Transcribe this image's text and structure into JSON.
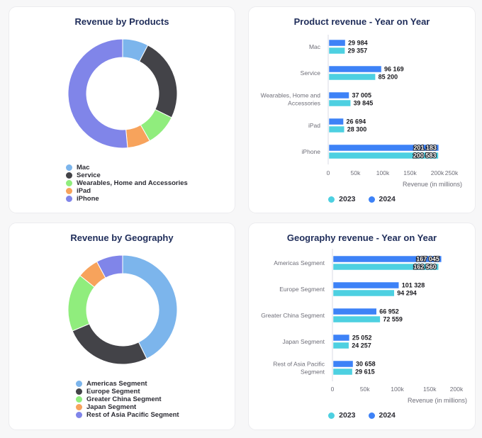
{
  "colors": {
    "c2023": "#4dd0e1",
    "c2024": "#3d82f7",
    "slices": [
      "#7cb5ec",
      "#434348",
      "#90ed7d",
      "#f7a35c",
      "#8085e9"
    ]
  },
  "chart_data": [
    {
      "id": "products-donut",
      "type": "pie",
      "title": "Revenue by Products",
      "labels": [
        "Mac",
        "Service",
        "Wearables, Home and Accessories",
        "iPad",
        "iPhone"
      ],
      "values": [
        29984,
        96169,
        37005,
        26694,
        201183
      ],
      "legend_position": "bottom"
    },
    {
      "id": "product-yoy",
      "type": "bar",
      "orientation": "horizontal",
      "title": "Product revenue - Year on Year",
      "categories": [
        "Mac",
        "Service",
        "Wearables, Home and Accessories",
        "iPad",
        "iPhone"
      ],
      "category_lines": [
        [
          "Mac"
        ],
        [
          "Service"
        ],
        [
          "Wearables, Home and",
          "Accessories"
        ],
        [
          "iPad"
        ],
        [
          "iPhone"
        ]
      ],
      "series": [
        {
          "name": "2024",
          "values": [
            29984,
            96169,
            37005,
            26694,
            201183
          ]
        },
        {
          "name": "2023",
          "values": [
            29357,
            85200,
            39845,
            28300,
            200583
          ]
        }
      ],
      "value_labels_2024": [
        "29 984",
        "96 169",
        "37 005",
        "26 694",
        "201 183"
      ],
      "value_labels_2023": [
        "29 357",
        "85 200",
        "39 845",
        "28 300",
        "200 583"
      ],
      "xticks": [
        "0",
        "50k",
        "100k",
        "150k",
        "200k",
        "250k"
      ],
      "xtick_values": [
        0,
        50000,
        100000,
        150000,
        200000,
        250000
      ],
      "xlabel": "Revenue (in millions)",
      "xlim": [
        0,
        200000
      ],
      "legend": [
        "2023",
        "2024"
      ],
      "legend_position": "bottom"
    },
    {
      "id": "geography-donut",
      "type": "pie",
      "title": "Revenue by Geography",
      "labels": [
        "Americas Segment",
        "Europe Segment",
        "Greater China Segment",
        "Japan Segment",
        "Rest of Asia Pacific Segment"
      ],
      "values": [
        167045,
        101328,
        66952,
        25052,
        30658
      ],
      "legend_position": "bottom"
    },
    {
      "id": "geo-yoy",
      "type": "bar",
      "orientation": "horizontal",
      "title": "Geography revenue - Year on Year",
      "categories": [
        "Americas Segment",
        "Europe Segment",
        "Greater China Segment",
        "Japan Segment",
        "Rest of Asia Pacific Segment"
      ],
      "category_lines": [
        [
          "Americas Segment"
        ],
        [
          "Europe Segment"
        ],
        [
          "Greater China Segment"
        ],
        [
          "Japan Segment"
        ],
        [
          "Rest of Asia Pacific",
          "Segment"
        ]
      ],
      "series": [
        {
          "name": "2024",
          "values": [
            167045,
            101328,
            66952,
            25052,
            30658
          ]
        },
        {
          "name": "2023",
          "values": [
            162560,
            94294,
            72559,
            24257,
            29615
          ]
        }
      ],
      "value_labels_2024": [
        "167 045",
        "101 328",
        "66 952",
        "25 052",
        "30 658"
      ],
      "value_labels_2023": [
        "162 560",
        "94 294",
        "72 559",
        "24 257",
        "29 615"
      ],
      "xticks": [
        "0",
        "50k",
        "100k",
        "150k",
        "200k"
      ],
      "xtick_values": [
        0,
        50000,
        100000,
        150000,
        200000
      ],
      "xlabel": "Revenue (in millions)",
      "xlim": [
        0,
        200000
      ],
      "legend": [
        "2023",
        "2024"
      ],
      "legend_position": "bottom"
    }
  ],
  "cards": {
    "products_title": "Revenue by Products",
    "product_yoy_title": "Product revenue - Year on Year",
    "geography_title": "Revenue by Geography",
    "geo_yoy_title": "Geography revenue - Year on Year"
  },
  "legends": {
    "products": [
      "Mac",
      "Service",
      "Wearables, Home and Accessories",
      "iPad",
      "iPhone"
    ],
    "geography": [
      "Americas Segment",
      "Europe Segment",
      "Greater China Segment",
      "Japan Segment",
      "Rest of Asia Pacific Segment"
    ],
    "years": [
      "2023",
      "2024"
    ]
  }
}
